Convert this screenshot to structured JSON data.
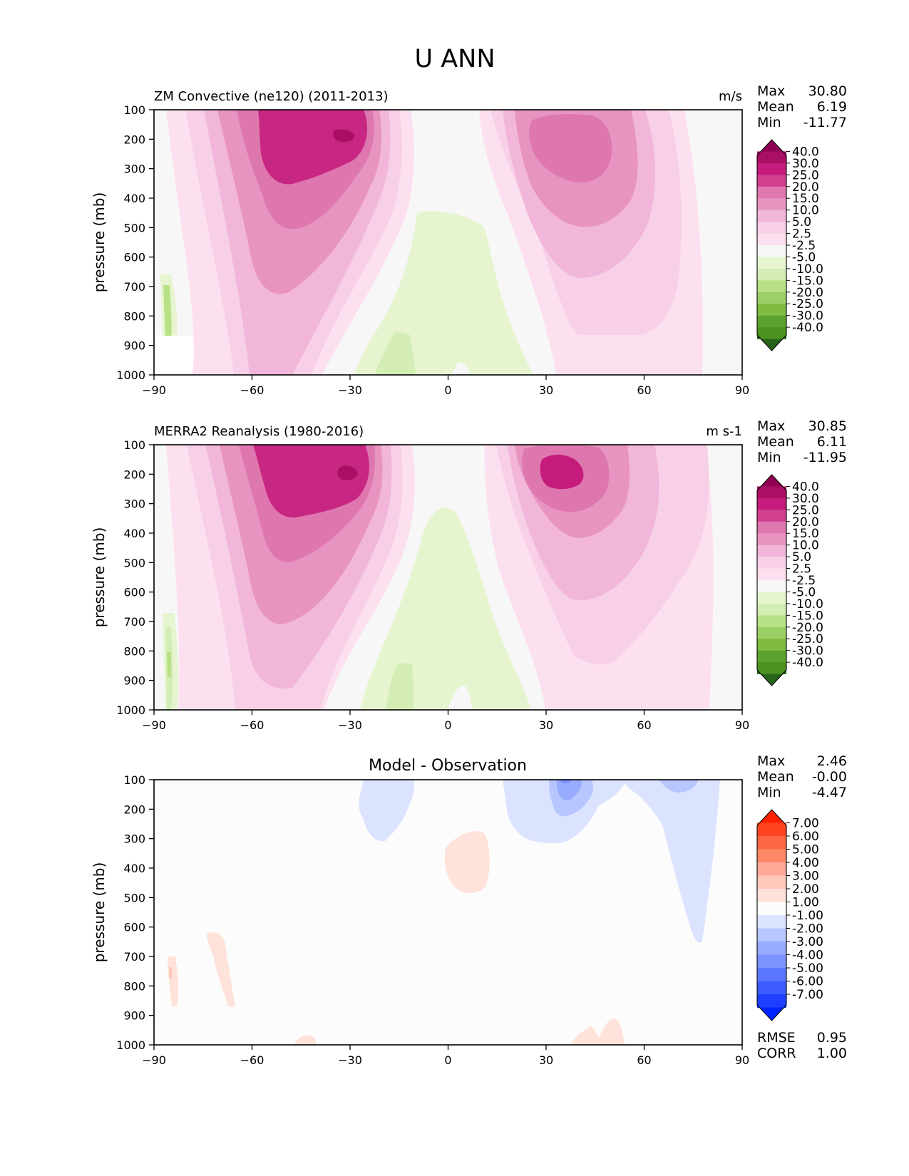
{
  "figure": {
    "title": "U ANN"
  },
  "chart_data": [
    {
      "type": "heatmap",
      "panel": "test",
      "title_left": "ZM Convective (ne120) (2011-2013)",
      "title_center": "",
      "units": "m/s",
      "ylabel": "pressure (mb)",
      "xlabel": "",
      "xlim": [
        -90,
        90
      ],
      "ylim": [
        1000,
        100
      ],
      "xticks": [
        "−90",
        "−60",
        "−30",
        "0",
        "30",
        "60",
        "90"
      ],
      "yticks": [
        "100",
        "200",
        "300",
        "400",
        "500",
        "600",
        "700",
        "800",
        "900",
        "1000"
      ],
      "stats": [
        {
          "label": "Max",
          "value": "30.80"
        },
        {
          "label": "Mean",
          "value": "6.19"
        },
        {
          "label": "Min",
          "value": "-11.77"
        }
      ],
      "colorbar": {
        "labels": [
          "40.0",
          "30.0",
          "25.0",
          "20.0",
          "15.0",
          "10.0",
          "5.0",
          "2.5",
          "-2.5",
          "-5.0",
          "-10.0",
          "-15.0",
          "-20.0",
          "-25.0",
          "-30.0",
          "-40.0"
        ],
        "colors": [
          "#8e0152",
          "#a90f62",
          "#c51b7d",
          "#d0408f",
          "#de77ae",
          "#e794c1",
          "#f1b6da",
          "#f7d0e7",
          "#fde0ef",
          "#f7f7f7",
          "#e6f5d0",
          "#d3edb5",
          "#b8e186",
          "#9ccf68",
          "#7fbc41",
          "#5ba22f",
          "#4d9221",
          "#276419"
        ]
      },
      "features": {
        "max_centers": [
          {
            "lat": -30,
            "p": 190,
            "u": 30.8
          }
        ],
        "southern_jet_core": {
          "lat": -40,
          "p": 200
        },
        "northern_jet_core": {
          "lat": 38,
          "p": 200
        },
        "easterlies_region": {
          "lat_range": [
            -25,
            15
          ],
          "p_range": [
            450,
            1000
          ]
        }
      }
    },
    {
      "type": "heatmap",
      "panel": "reference",
      "title_left": "MERRA2 Reanalysis (1980-2016)",
      "title_center": "",
      "units": "m s-1",
      "ylabel": "pressure (mb)",
      "xlabel": "",
      "xlim": [
        -90,
        90
      ],
      "ylim": [
        1000,
        100
      ],
      "xticks": [
        "−90",
        "−60",
        "−30",
        "0",
        "30",
        "60",
        "90"
      ],
      "yticks": [
        "100",
        "200",
        "300",
        "400",
        "500",
        "600",
        "700",
        "800",
        "900",
        "1000"
      ],
      "stats": [
        {
          "label": "Max",
          "value": "30.85"
        },
        {
          "label": "Mean",
          "value": "6.11"
        },
        {
          "label": "Min",
          "value": "-11.95"
        }
      ],
      "colorbar": {
        "labels": [
          "40.0",
          "30.0",
          "25.0",
          "20.0",
          "15.0",
          "10.0",
          "5.0",
          "2.5",
          "-2.5",
          "-5.0",
          "-10.0",
          "-15.0",
          "-20.0",
          "-25.0",
          "-30.0",
          "-40.0"
        ],
        "colors": [
          "#8e0152",
          "#a90f62",
          "#c51b7d",
          "#d0408f",
          "#de77ae",
          "#e794c1",
          "#f1b6da",
          "#f7d0e7",
          "#fde0ef",
          "#f7f7f7",
          "#e6f5d0",
          "#d3edb5",
          "#b8e186",
          "#9ccf68",
          "#7fbc41",
          "#5ba22f",
          "#4d9221",
          "#276419"
        ]
      },
      "features": {
        "max_centers": [
          {
            "lat": -30,
            "p": 200,
            "u": 30.85
          }
        ],
        "southern_jet_core": {
          "lat": -40,
          "p": 200
        },
        "northern_jet_core": {
          "lat": 36,
          "p": 200
        },
        "easterlies_region": {
          "lat_range": [
            -25,
            15
          ],
          "p_range": [
            350,
            1000
          ]
        }
      }
    },
    {
      "type": "heatmap",
      "panel": "difference",
      "title_left": "",
      "title_center": "Model - Observation",
      "units": "",
      "ylabel": "pressure (mb)",
      "xlabel": "",
      "xlim": [
        -90,
        90
      ],
      "ylim": [
        1000,
        100
      ],
      "xticks": [
        "−90",
        "−60",
        "−30",
        "0",
        "30",
        "60",
        "90"
      ],
      "yticks": [
        "100",
        "200",
        "300",
        "400",
        "500",
        "600",
        "700",
        "800",
        "900",
        "1000"
      ],
      "stats": [
        {
          "label": "Max",
          "value": "2.46"
        },
        {
          "label": "Mean",
          "value": "-0.00"
        },
        {
          "label": "Min",
          "value": "-4.47"
        }
      ],
      "extra_stats": [
        {
          "label": "RMSE",
          "value": "0.95"
        },
        {
          "label": "CORR",
          "value": "1.00"
        }
      ],
      "colorbar": {
        "labels": [
          "7.00",
          "6.00",
          "5.00",
          "4.00",
          "3.00",
          "2.00",
          "1.00",
          "-1.00",
          "-2.00",
          "-3.00",
          "-4.00",
          "-5.00",
          "-6.00",
          "-7.00"
        ],
        "colors": [
          "#ff2200",
          "#ff4422",
          "#ff6644",
          "#ff8866",
          "#ffaa99",
          "#ffc8bb",
          "#ffe2da",
          "#fcfcfc",
          "#dce3ff",
          "#b8c6ff",
          "#98abff",
          "#7b93ff",
          "#5a78ff",
          "#3c5cff",
          "#1e3fff",
          "#0022ff"
        ]
      },
      "features": {
        "negative_regions": [
          {
            "lat_range": [
              -30,
              -12
            ],
            "p_range": [
              100,
              300
            ]
          },
          {
            "lat_range": [
              20,
              55
            ],
            "p_range": [
              100,
              290
            ]
          },
          {
            "lat_range": [
              58,
              90
            ],
            "p_range": [
              100,
              650
            ]
          }
        ],
        "positive_regions": [
          {
            "lat_range": [
              -3,
              12
            ],
            "p_range": [
              260,
              480
            ]
          },
          {
            "lat_range": [
              -87,
              -82
            ],
            "p_range": [
              700,
              870
            ]
          },
          {
            "lat_range": [
              -75,
              -66
            ],
            "p_range": [
              610,
              870
            ]
          },
          {
            "lat_range": [
              37,
              55
            ],
            "p_range": [
              900,
              1000
            ]
          }
        ]
      }
    }
  ]
}
